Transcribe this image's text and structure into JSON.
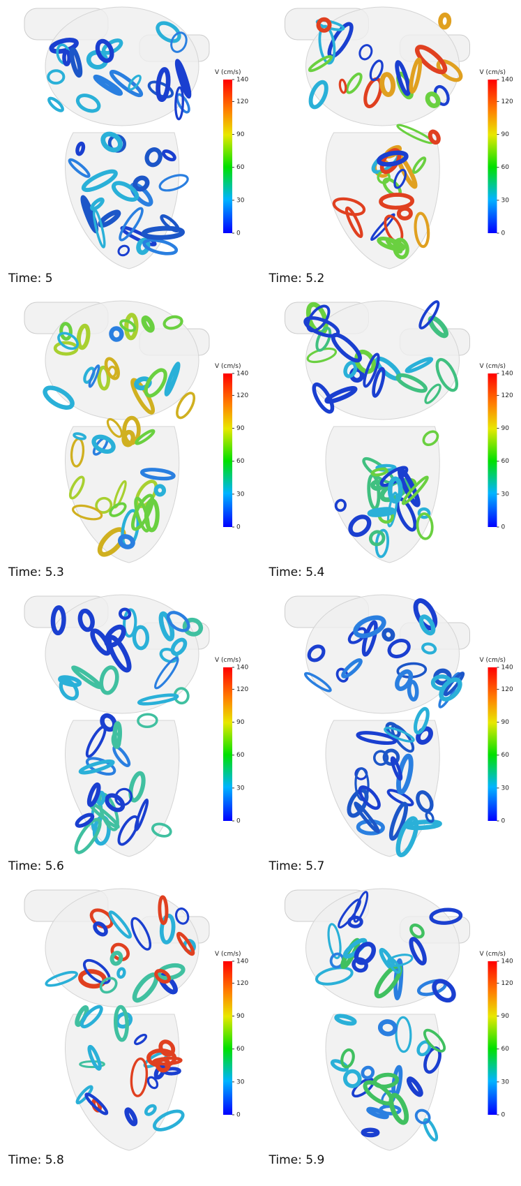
{
  "panels": [
    {
      "time_label": "Time: 5",
      "colorbar": {
        "title": "V (cm/s)",
        "ticks": [
          0,
          30,
          60,
          90,
          120,
          140
        ]
      }
    },
    {
      "time_label": "Time: 5.2",
      "colorbar": {
        "title": "V (cm/s)",
        "ticks": [
          0,
          30,
          60,
          90,
          120,
          140
        ]
      }
    },
    {
      "time_label": "Time: 5.3",
      "colorbar": {
        "title": "V (cm/s)",
        "ticks": [
          0,
          30,
          60,
          90,
          120,
          140
        ]
      }
    },
    {
      "time_label": "Time: 5.4",
      "colorbar": {
        "title": "V (cm/s)",
        "ticks": [
          0,
          30,
          60,
          90,
          120,
          140
        ]
      }
    },
    {
      "time_label": "Time: 5.6",
      "colorbar": {
        "title": "V (cm/s)",
        "ticks": [
          0,
          30,
          60,
          90,
          120,
          140
        ]
      }
    },
    {
      "time_label": "Time: 5.7",
      "colorbar": {
        "title": "V (cm/s)",
        "ticks": [
          0,
          30,
          60,
          90,
          120,
          140
        ]
      }
    },
    {
      "time_label": "Time: 5.8",
      "colorbar": {
        "title": "V (cm/s)",
        "ticks": [
          0,
          30,
          60,
          90,
          120,
          140
        ]
      }
    },
    {
      "time_label": "Time: 5.9",
      "colorbar": {
        "title": "V (cm/s)",
        "ticks": [
          0,
          30,
          60,
          90,
          120,
          140
        ]
      }
    }
  ]
}
